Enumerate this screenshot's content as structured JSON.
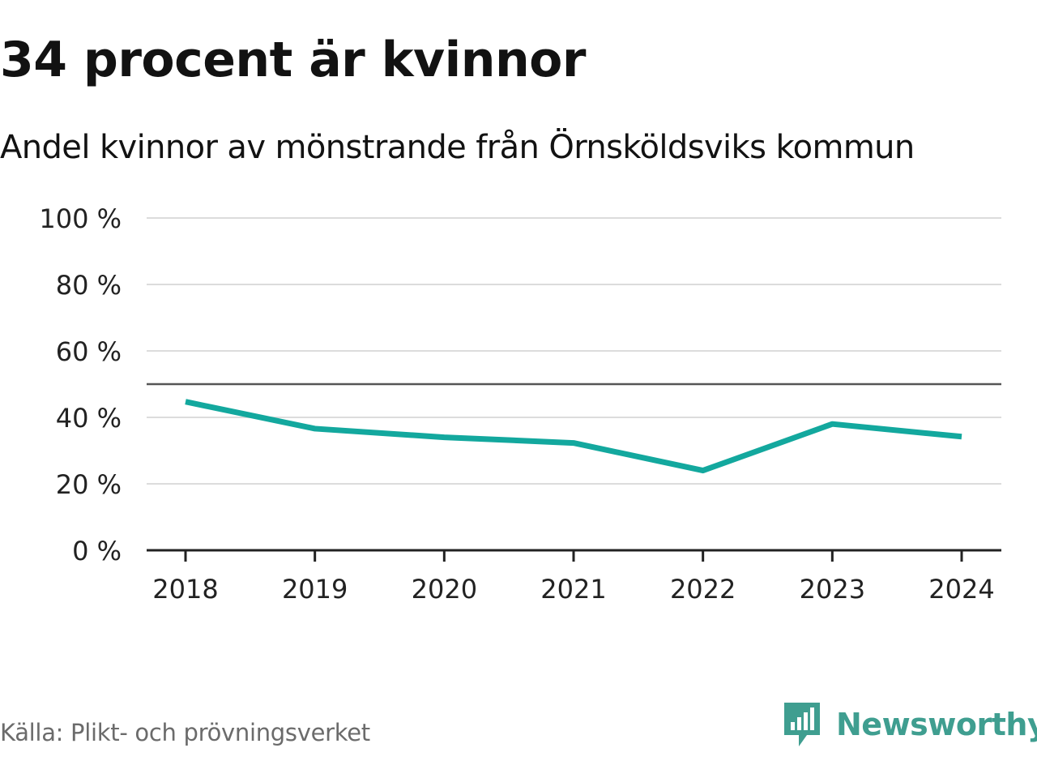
{
  "title": "34 procent är kvinnor",
  "subtitle": "Andel kvinnor av mönstrande från Örnsköldsviks kommun",
  "source": "Källa: Plikt- och prövningsverket",
  "brand": {
    "name": "Newsworthy",
    "icon": "newsworthy-logo-icon"
  },
  "colors": {
    "line": "#13a89e",
    "grid": "#dcdcdc",
    "axis": "#222222",
    "reference": "#555555",
    "brand": "#3f9e90"
  },
  "chart_data": {
    "type": "line",
    "title": "34 procent är kvinnor",
    "subtitle": "Andel kvinnor av mönstrande från Örnsköldsviks kommun",
    "xlabel": "",
    "ylabel": "",
    "categories": [
      "2018",
      "2019",
      "2020",
      "2021",
      "2022",
      "2023",
      "2024"
    ],
    "series": [
      {
        "name": "Andel kvinnor",
        "values": [
          44.7,
          36.6,
          34.0,
          32.3,
          24.0,
          38.0,
          34.2
        ]
      }
    ],
    "ylim": [
      0,
      100
    ],
    "yticks": [
      0,
      20,
      40,
      60,
      80,
      100
    ],
    "ytick_labels": [
      "0 %",
      "20 %",
      "40 %",
      "60 %",
      "80 %",
      "100 %"
    ],
    "reference_line": 50,
    "grid": true
  }
}
